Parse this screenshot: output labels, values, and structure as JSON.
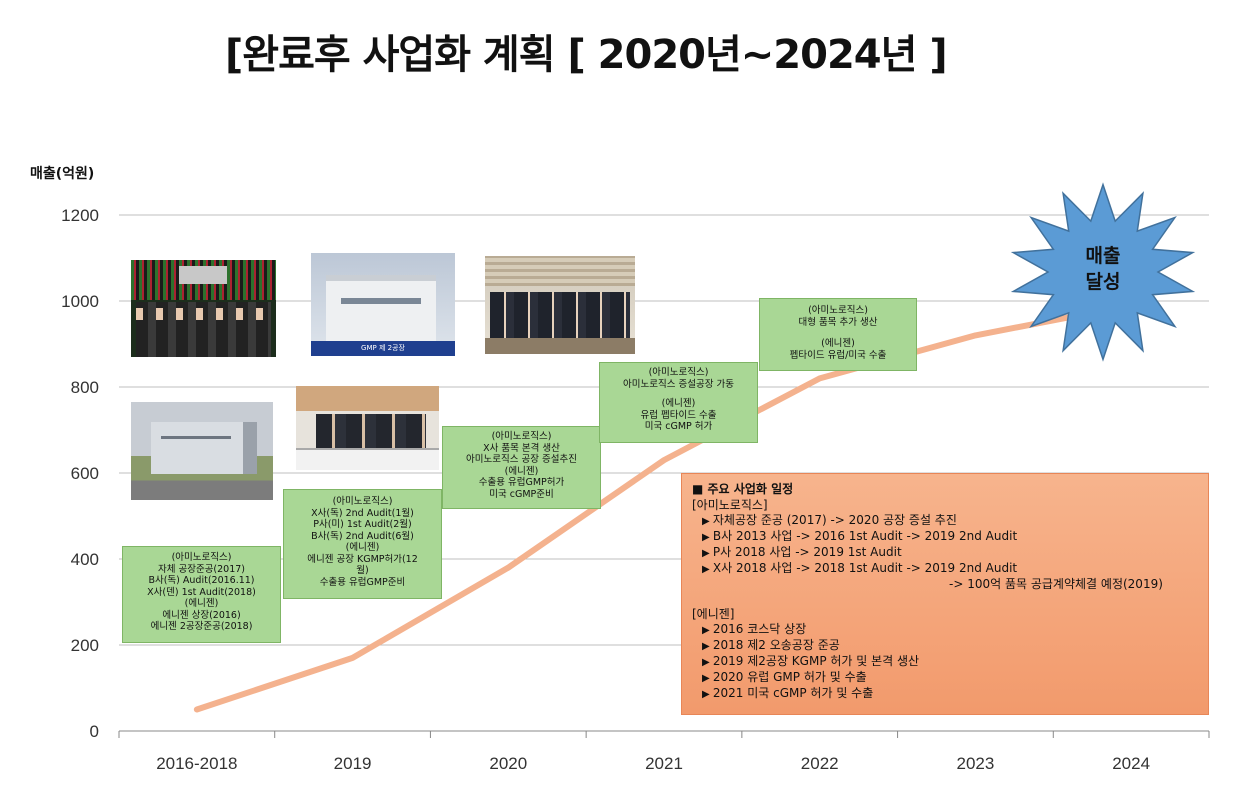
{
  "title": "[완료후 사업화 계획 [ 2020년~2024년 ]",
  "colors": {
    "line": "#f4b28e",
    "box_green": "#a9d795",
    "plan_box": "#f4a77a",
    "burst": "#5b9bd5"
  },
  "chart_data": {
    "type": "line",
    "ylabel": "매출(억원)",
    "ylim": [
      0,
      1200
    ],
    "yticks": [
      "0",
      "200",
      "400",
      "600",
      "800",
      "1000",
      "1200"
    ],
    "categories": [
      "2016-2018",
      "2019",
      "2020",
      "2021",
      "2022",
      "2023",
      "2024"
    ],
    "values": [
      50,
      170,
      380,
      630,
      820,
      920,
      990
    ],
    "grid": true
  },
  "burst": {
    "line1": "매출",
    "line2": "달성"
  },
  "boxes": [
    {
      "lines": [
        "(아미노로직스)",
        "자체 공장준공(2017)",
        "B사(독) Audit(2016.11)",
        "X사(덴) 1st Audit(2018)",
        "(에니젠)",
        "에니젠 상장(2016)",
        "에니젠 2공장준공(2018)"
      ]
    },
    {
      "lines": [
        "(아미노로직스)",
        "X사(독) 2nd Audit(1월)",
        "P사(미) 1st Audit(2월)",
        "B사(독) 2nd Audit(6월)",
        "(에니젠)",
        "에니젠 공장 KGMP허가(12",
        "월)",
        "수출용 유럽GMP준비"
      ]
    },
    {
      "lines": [
        "(아미노로직스)",
        "X사 품목 본격 생산",
        "아미노로직스 공장 증설추진",
        "(에니젠)",
        "수출용 유럽GMP허가",
        "미국 cGMP준비"
      ]
    },
    {
      "lines": [
        "(아미노로직스)",
        "아미노로직스 증설공장 가동",
        "",
        "(에니젠)",
        "유럽 펩타이드 수출",
        "미국 cGMP 허가"
      ]
    },
    {
      "lines": [
        "(아미노로직스)",
        "대형 품목 추가 생산",
        "",
        "(에니젠)",
        "펩타이드 유럽/미국 수출"
      ]
    }
  ],
  "photos": [
    {
      "caption": ""
    },
    {
      "caption": "GMP 제 2공장"
    },
    {
      "caption": ""
    },
    {
      "caption": ""
    },
    {
      "caption": ""
    }
  ],
  "plan": {
    "heading": "■ 주요 사업화 일정",
    "sec1": "[아미노로직스]",
    "items1": [
      "자체공장 준공 (2017) -> 2020 공장 증설 추진",
      "B사 2013 사업 -> 2016 1st Audit -> 2019 2nd Audit",
      "P사 2018 사업 -> 2019 1st Audit",
      "X사 2018 사업 -> 2018 1st Audit -> 2019 2nd Audit"
    ],
    "cont1": "-> 100억 품목 공급계약체결 예정(2019)",
    "sec2": "[에니젠]",
    "items2": [
      "2016 코스닥 상장",
      "2018 제2 오송공장 준공",
      "2019 제2공장 KGMP 허가 및 본격 생산",
      "2020 유럽 GMP 허가 및 수출",
      "2021 미국 cGMP 허가 및 수출"
    ]
  }
}
